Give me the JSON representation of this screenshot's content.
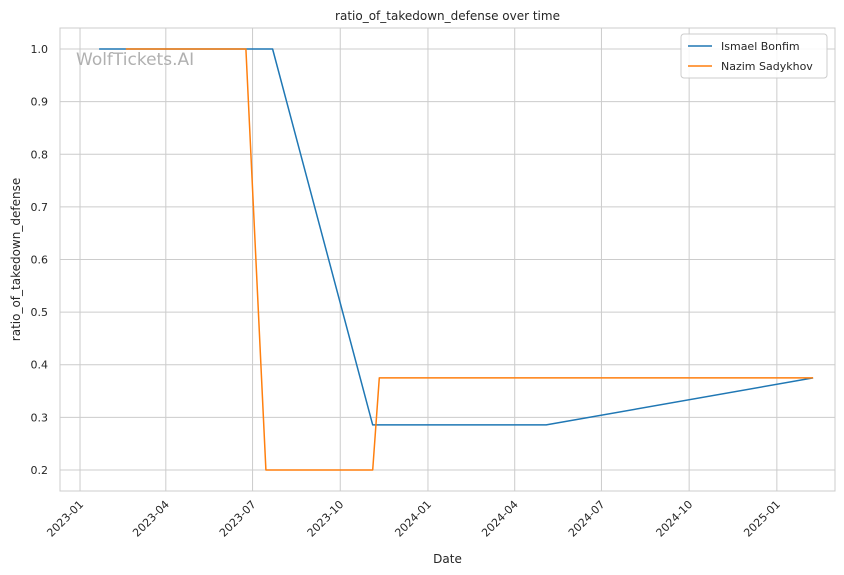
{
  "chart_data": {
    "type": "line",
    "title": "ratio_of_takedown_defense over time",
    "xlabel": "Date",
    "ylabel": "ratio_of_takedown_defense",
    "watermark": "WolfTickets.AI",
    "x_ticks": [
      "2023-01",
      "2023-04",
      "2023-07",
      "2023-10",
      "2024-01",
      "2024-04",
      "2024-07",
      "2024-10",
      "2025-01"
    ],
    "y_ticks": [
      "0.2",
      "0.3",
      "0.4",
      "0.5",
      "0.6",
      "0.7",
      "0.8",
      "0.9",
      "1.0"
    ],
    "xlim": [
      "2022-12-11",
      "2025-03-03"
    ],
    "ylim": [
      0.16,
      1.04
    ],
    "grid": true,
    "legend_position": "top-right",
    "series": [
      {
        "name": "Ismael Bonfim",
        "color": "#1f77b4",
        "x": [
          "2023-01-21",
          "2023-07-22",
          "2023-11-04",
          "2024-05-04",
          "2025-02-08"
        ],
        "y": [
          1.0,
          1.0,
          0.2857,
          0.2857,
          0.375
        ]
      },
      {
        "name": "Nazim Sadykhov",
        "color": "#ff7f0e",
        "x": [
          "2023-02-18",
          "2023-06-24",
          "2023-07-15",
          "2023-11-04",
          "2023-11-11",
          "2025-02-08"
        ],
        "y": [
          1.0,
          1.0,
          0.2,
          0.2,
          0.375,
          0.375
        ]
      }
    ]
  }
}
